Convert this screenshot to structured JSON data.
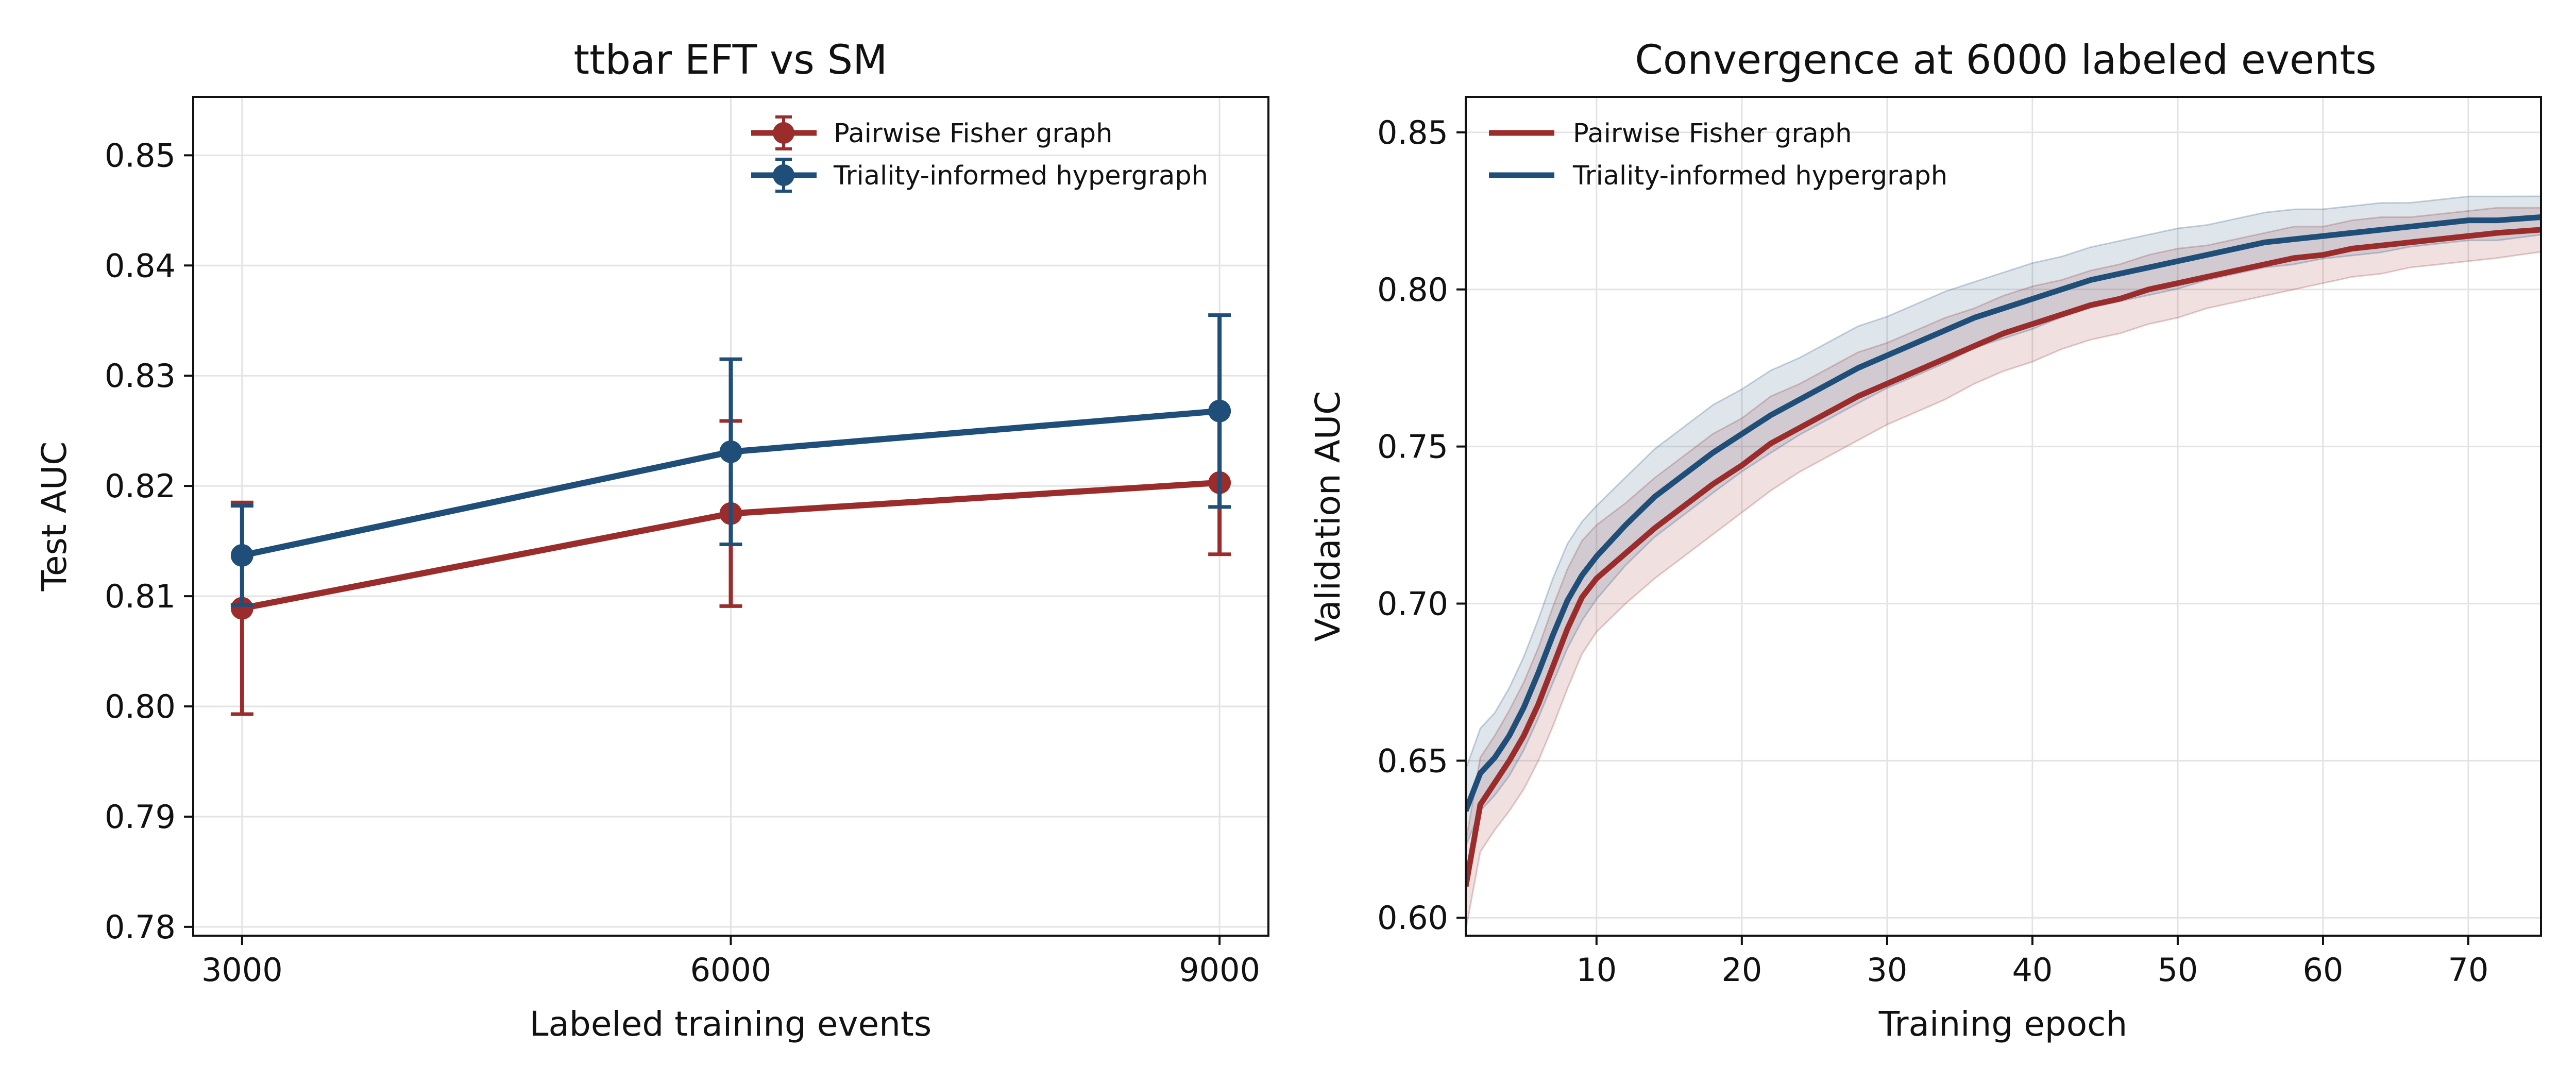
{
  "chart_data": [
    {
      "type": "line",
      "title": "ttbar EFT vs SM",
      "xlabel": "Labeled training events",
      "ylabel": "Test AUC",
      "x": [
        3000,
        6000,
        9000
      ],
      "xticks": [
        3000,
        6000,
        9000
      ],
      "xlim": [
        2700,
        9300
      ],
      "ylim": [
        0.7792,
        0.8553
      ],
      "yticks": [
        0.78,
        0.79,
        0.8,
        0.81,
        0.82,
        0.83,
        0.84,
        0.85
      ],
      "ytick_labels": [
        "0.78",
        "0.79",
        "0.80",
        "0.81",
        "0.82",
        "0.83",
        "0.84",
        "0.85"
      ],
      "grid": true,
      "legend_position": "top-right",
      "series": [
        {
          "name": "Pairwise Fisher graph",
          "color": "#9b2c2c",
          "values": [
            0.8089,
            0.8175,
            0.8203
          ],
          "errors": [
            0.0096,
            0.0084,
            0.0065
          ]
        },
        {
          "name": "Triality-informed hypergraph",
          "color": "#1f4e79",
          "values": [
            0.8137,
            0.8231,
            0.8268
          ],
          "errors": [
            0.0045,
            0.0084,
            0.0087
          ]
        }
      ]
    },
    {
      "type": "line",
      "title": "Convergence at 6000 labeled events",
      "xlabel": "Training epoch",
      "ylabel": "Validation AUC",
      "xlim": [
        1,
        75
      ],
      "xticks": [
        10,
        20,
        30,
        40,
        50,
        60,
        70
      ],
      "ylim": [
        0.5943,
        0.8613
      ],
      "yticks": [
        0.6,
        0.65,
        0.7,
        0.75,
        0.8,
        0.85
      ],
      "ytick_labels": [
        "0.60",
        "0.65",
        "0.70",
        "0.75",
        "0.80",
        "0.85"
      ],
      "grid": true,
      "legend_position": "top-left",
      "band": "shaded spread around each curve",
      "series": [
        {
          "name": "Pairwise Fisher graph",
          "color": "#9b2c2c",
          "x": [
            1,
            2,
            3,
            4,
            5,
            6,
            7,
            8,
            9,
            10,
            12,
            14,
            16,
            18,
            20,
            22,
            24,
            26,
            28,
            30,
            32,
            34,
            36,
            38,
            40,
            42,
            44,
            46,
            48,
            50,
            52,
            54,
            56,
            58,
            60,
            62,
            64,
            66,
            68,
            70,
            72,
            75
          ],
          "values": [
            0.61,
            0.636,
            0.643,
            0.65,
            0.658,
            0.668,
            0.68,
            0.692,
            0.702,
            0.708,
            0.716,
            0.724,
            0.731,
            0.738,
            0.744,
            0.751,
            0.756,
            0.761,
            0.766,
            0.77,
            0.774,
            0.778,
            0.782,
            0.786,
            0.789,
            0.792,
            0.795,
            0.797,
            0.8,
            0.802,
            0.804,
            0.806,
            0.808,
            0.81,
            0.811,
            0.813,
            0.814,
            0.815,
            0.816,
            0.817,
            0.818,
            0.819
          ],
          "band_lower": [
            0.596,
            0.621,
            0.628,
            0.634,
            0.641,
            0.65,
            0.661,
            0.673,
            0.684,
            0.691,
            0.7,
            0.708,
            0.715,
            0.722,
            0.729,
            0.736,
            0.742,
            0.747,
            0.752,
            0.757,
            0.761,
            0.765,
            0.77,
            0.774,
            0.777,
            0.781,
            0.784,
            0.786,
            0.789,
            0.791,
            0.794,
            0.796,
            0.798,
            0.8,
            0.802,
            0.804,
            0.805,
            0.807,
            0.808,
            0.809,
            0.81,
            0.812
          ],
          "band_upper": [
            0.624,
            0.651,
            0.658,
            0.666,
            0.675,
            0.686,
            0.699,
            0.711,
            0.72,
            0.725,
            0.732,
            0.74,
            0.747,
            0.754,
            0.759,
            0.766,
            0.77,
            0.775,
            0.78,
            0.783,
            0.787,
            0.791,
            0.794,
            0.798,
            0.801,
            0.803,
            0.806,
            0.808,
            0.811,
            0.813,
            0.814,
            0.816,
            0.818,
            0.82,
            0.82,
            0.822,
            0.823,
            0.823,
            0.824,
            0.825,
            0.826,
            0.826
          ]
        },
        {
          "name": "Triality-informed hypergraph",
          "color": "#1f4e79",
          "x": [
            1,
            2,
            3,
            4,
            5,
            6,
            7,
            8,
            9,
            10,
            12,
            14,
            16,
            18,
            20,
            22,
            24,
            26,
            28,
            30,
            32,
            34,
            36,
            38,
            40,
            42,
            44,
            46,
            48,
            50,
            52,
            54,
            56,
            58,
            60,
            62,
            64,
            66,
            68,
            70,
            72,
            75
          ],
          "values": [
            0.634,
            0.646,
            0.651,
            0.658,
            0.667,
            0.678,
            0.69,
            0.701,
            0.709,
            0.715,
            0.725,
            0.734,
            0.741,
            0.748,
            0.754,
            0.76,
            0.765,
            0.77,
            0.775,
            0.779,
            0.783,
            0.787,
            0.791,
            0.794,
            0.797,
            0.8,
            0.803,
            0.805,
            0.807,
            0.809,
            0.811,
            0.813,
            0.815,
            0.816,
            0.817,
            0.818,
            0.819,
            0.82,
            0.821,
            0.822,
            0.822,
            0.823
          ]
        }
      ]
    }
  ]
}
